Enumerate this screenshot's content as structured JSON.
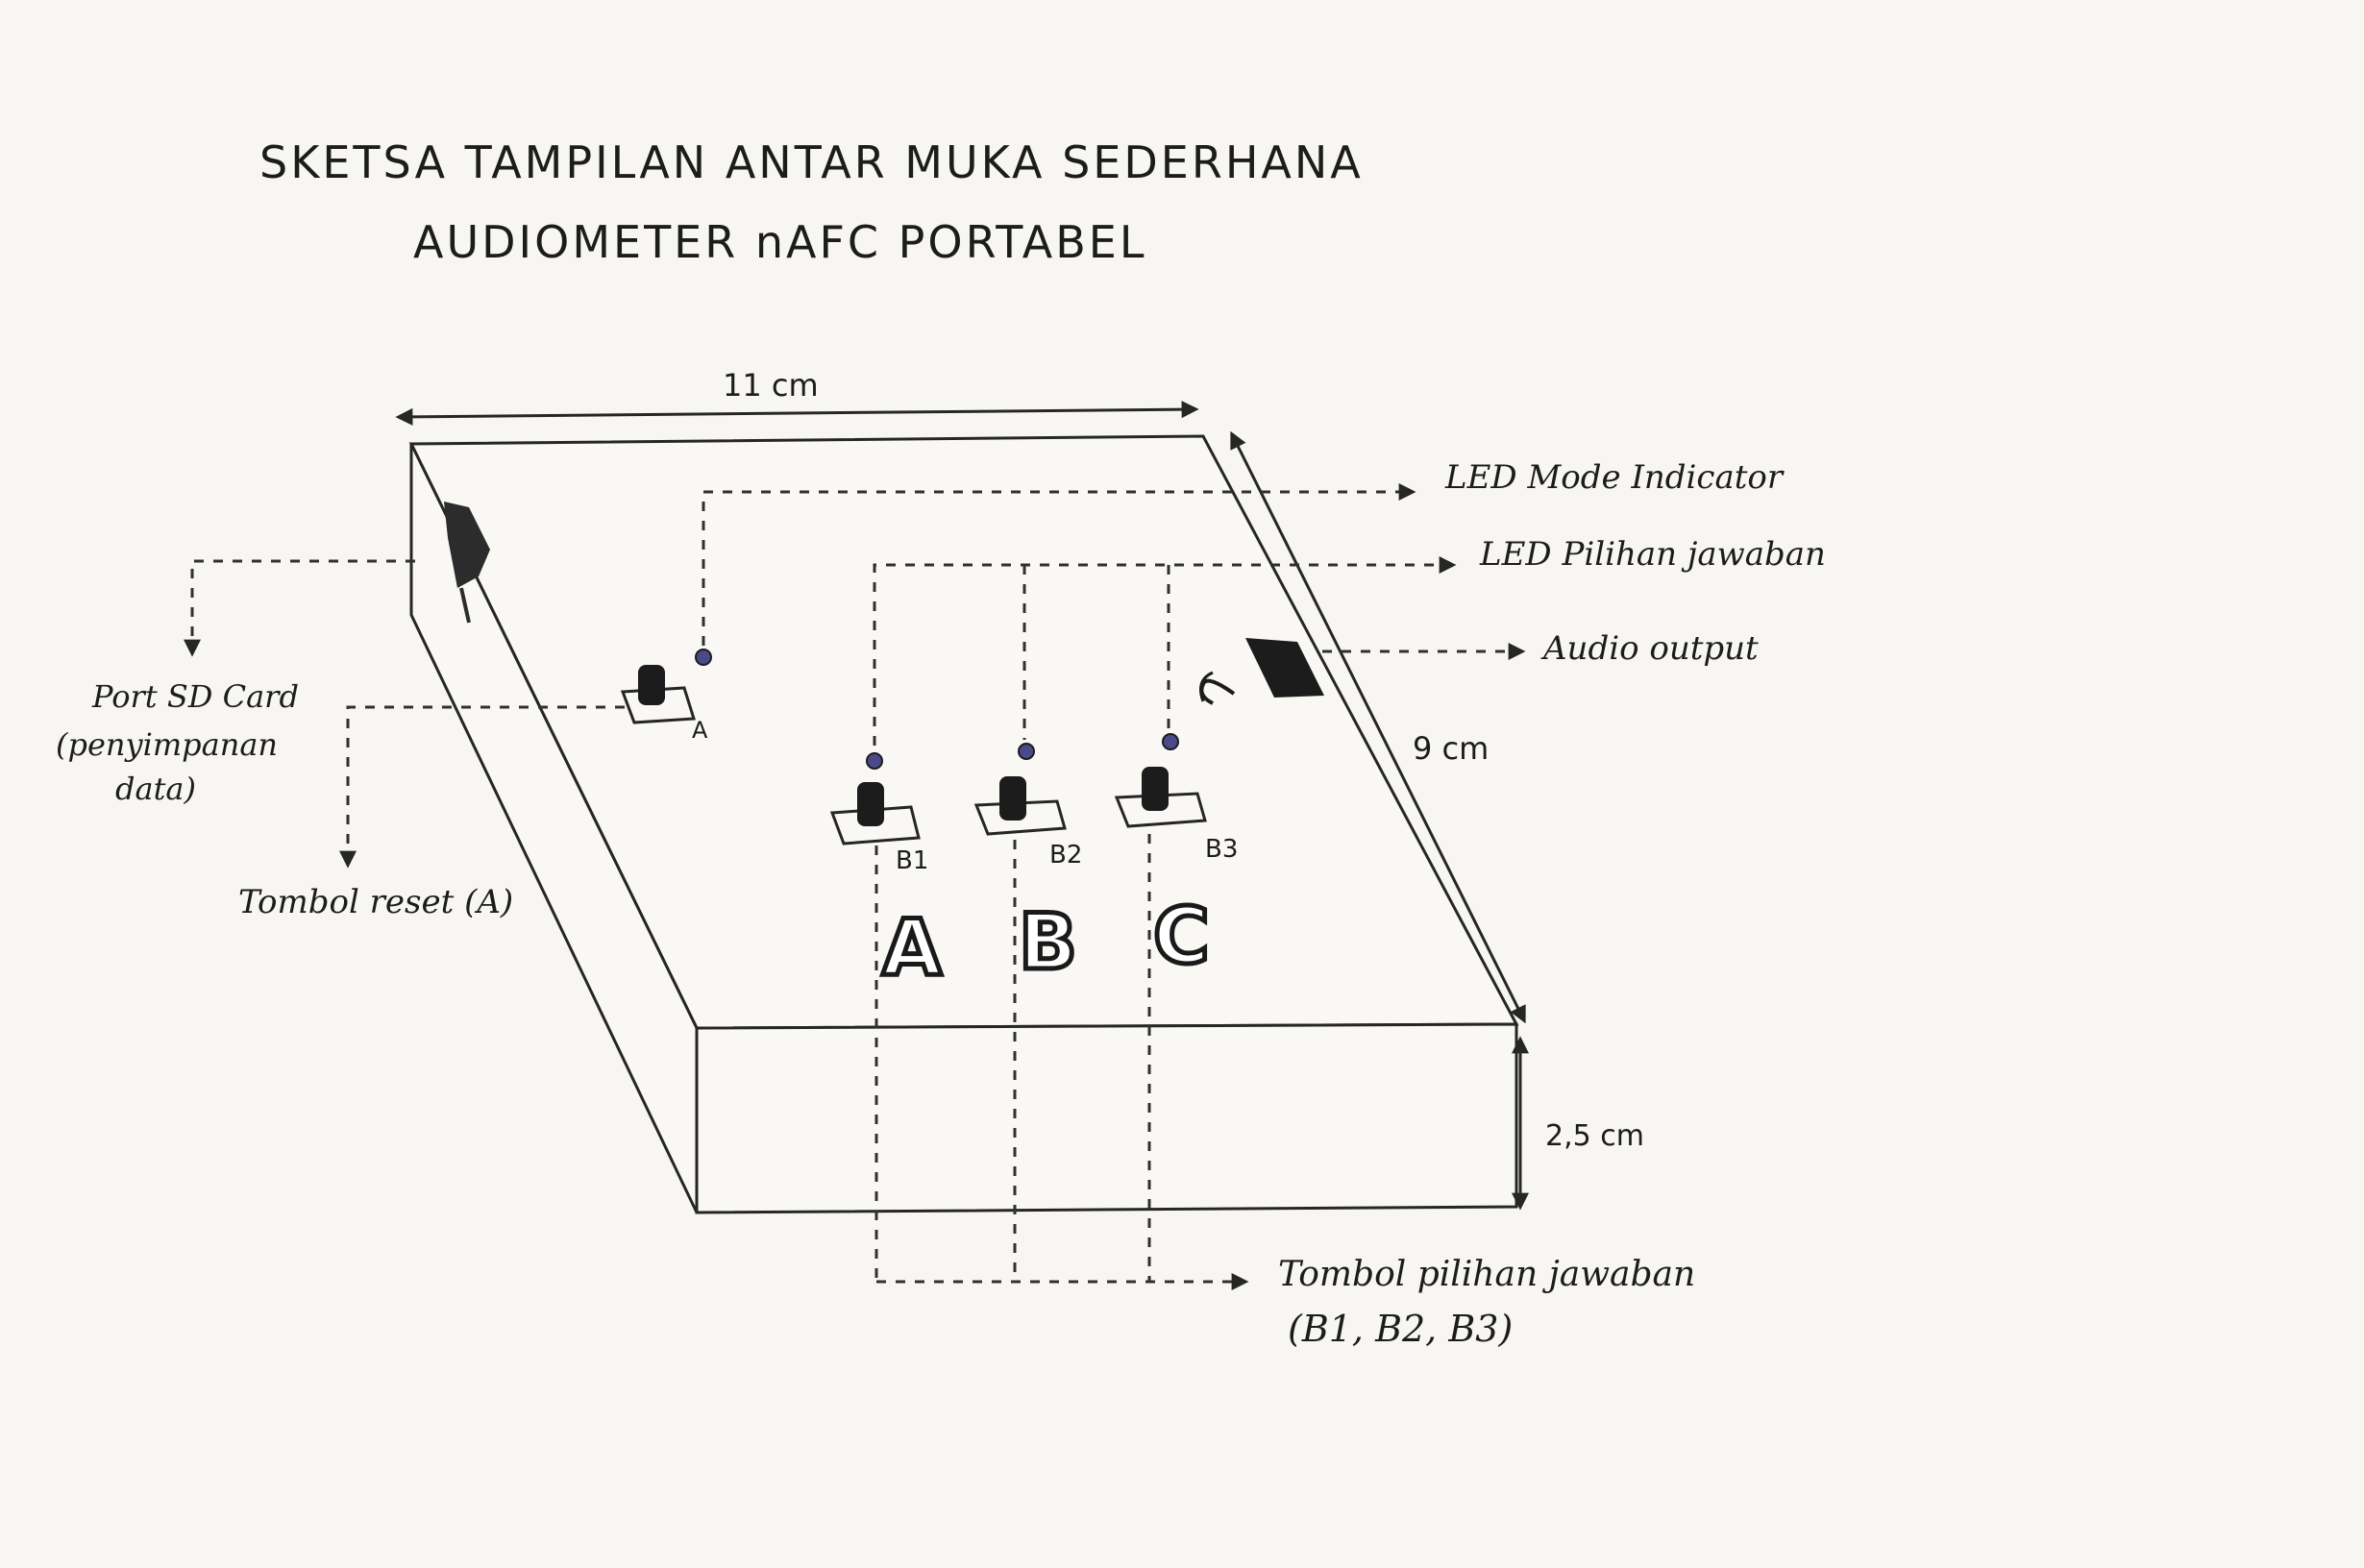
{
  "title": {
    "line1": "SKETSA TAMPILAN ANTAR MUKA SEDERHANA",
    "line2": "AUDIOMETER nAFC PORTABEL"
  },
  "dimensions": {
    "width": "11 cm",
    "depth": "9 cm",
    "height": "2,5 cm"
  },
  "callouts": {
    "led_mode": "LED Mode Indicator",
    "led_choice": "LED Pilihan jawaban",
    "audio_output": "Audio output",
    "sd_card_line1": "Port SD Card",
    "sd_card_line2": "(penyimpanan",
    "sd_card_line3": "data)",
    "reset_button": "Tombol reset (A)",
    "answer_buttons_line1": "Tombol pilihan jawaban",
    "answer_buttons_line2": "(B1, B2, B3)"
  },
  "buttons": {
    "reset": "A",
    "b1": "B1",
    "b2": "B2",
    "b3": "B3"
  },
  "answer_letters": [
    "A",
    "B",
    "C"
  ],
  "colors": {
    "ink": "#262626",
    "paper": "#f7f6f3",
    "led": "#4a4a8a"
  },
  "icons": {
    "sd_port": "sd-card-port-icon",
    "headphone": "headphone-icon",
    "led": "led-icon"
  }
}
